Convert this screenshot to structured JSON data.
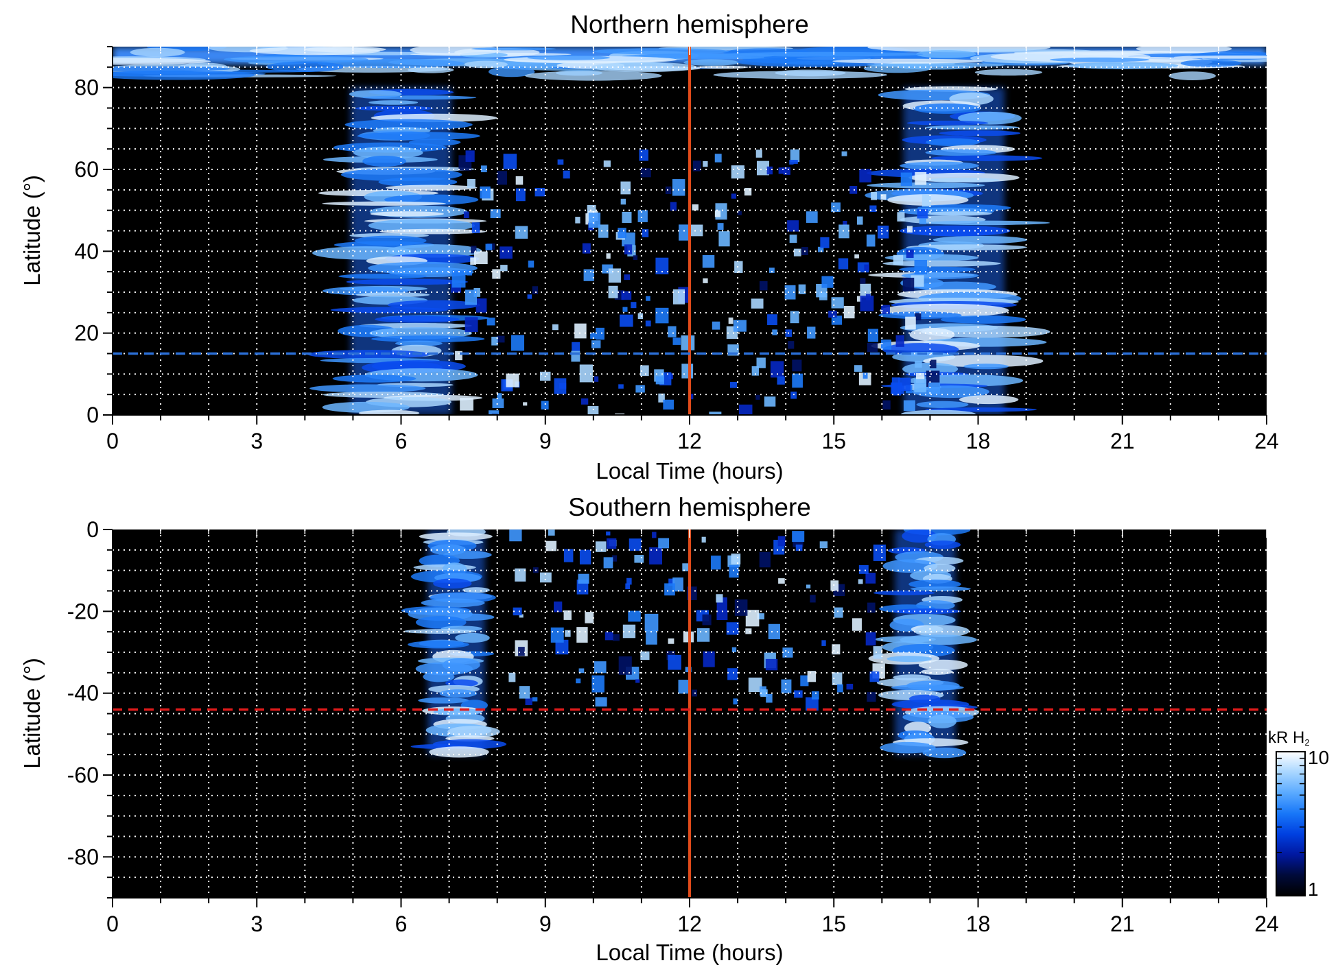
{
  "chart_data": [
    {
      "type": "heatmap",
      "title": "Northern hemisphere",
      "xlabel": "Local Time (hours)",
      "ylabel": "Latitude (°)",
      "xlim": [
        0,
        24
      ],
      "ylim": [
        0,
        90
      ],
      "xticks": [
        "0",
        "3",
        "6",
        "9",
        "12",
        "15",
        "18",
        "21",
        "24"
      ],
      "yticks": [
        "0",
        "20",
        "40",
        "60",
        "80"
      ],
      "grid": true,
      "reference_lines": [
        {
          "orientation": "vertical",
          "value": 12,
          "style": "solid",
          "color": "#e04b1a"
        },
        {
          "orientation": "horizontal",
          "value": 15,
          "style": "dashed",
          "color": "#2b6fd6"
        }
      ],
      "emission_regions": [
        {
          "region": "polar cap",
          "lt": [
            0,
            24
          ],
          "lat": [
            82,
            90
          ],
          "level": "high"
        },
        {
          "region": "dawn band",
          "lt": [
            4.5,
            7.5
          ],
          "lat": [
            0,
            80
          ],
          "level": "high"
        },
        {
          "region": "dusk band",
          "lt": [
            16,
            19
          ],
          "lat": [
            0,
            80
          ],
          "level": "high"
        },
        {
          "region": "dayside patches",
          "lt": [
            7,
            17
          ],
          "lat": [
            0,
            65
          ],
          "level": "medium"
        }
      ]
    },
    {
      "type": "heatmap",
      "title": "Southern hemisphere",
      "xlabel": "Local Time (hours)",
      "ylabel": "Latitude (°)",
      "xlim": [
        0,
        24
      ],
      "ylim": [
        -90,
        0
      ],
      "xticks": [
        "0",
        "3",
        "6",
        "9",
        "12",
        "15",
        "18",
        "21",
        "24"
      ],
      "yticks": [
        "0",
        "-20",
        "-40",
        "-60",
        "-80"
      ],
      "grid": true,
      "reference_lines": [
        {
          "orientation": "vertical",
          "value": 12,
          "style": "solid",
          "color": "#e04b1a"
        },
        {
          "orientation": "horizontal",
          "value": -44,
          "style": "dashed",
          "color": "#e01b1b"
        }
      ],
      "emission_regions": [
        {
          "region": "dawn band",
          "lt": [
            6.3,
            8
          ],
          "lat": [
            -55,
            0
          ],
          "level": "high"
        },
        {
          "region": "dusk band",
          "lt": [
            16,
            17.8
          ],
          "lat": [
            -55,
            0
          ],
          "level": "high"
        },
        {
          "region": "dayside patches",
          "lt": [
            8,
            16
          ],
          "lat": [
            -42,
            0
          ],
          "level": "medium"
        }
      ]
    }
  ],
  "colorbar": {
    "label_main": "kR H",
    "label_sub": "2",
    "scale": "log",
    "min_label": "1",
    "max_label": "10",
    "colors": [
      "#000000",
      "#000a3a",
      "#0018a0",
      "#0040e0",
      "#1877f8",
      "#5aaaff",
      "#a8d6ff",
      "#ffffff"
    ]
  }
}
